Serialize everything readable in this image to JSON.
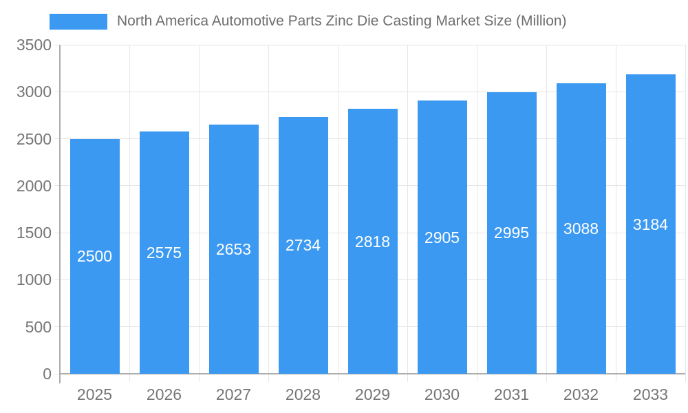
{
  "chart_data": {
    "type": "bar",
    "title": "North America Automotive Parts Zinc Die Casting Market Size (Million)",
    "legend_position": "top",
    "legend": [
      {
        "label": "North America Automotive Parts Zinc Die Casting Market Size (Million)",
        "color": "#3B99F1"
      }
    ],
    "categories": [
      "2025",
      "2026",
      "2027",
      "2028",
      "2029",
      "2030",
      "2031",
      "2032",
      "2033"
    ],
    "series": [
      {
        "name": "North America Automotive Parts Zinc Die Casting Market Size (Million)",
        "values": [
          2500,
          2575,
          2653,
          2734,
          2818,
          2905,
          2995,
          3088,
          3184
        ]
      }
    ],
    "value_labels": [
      "2500",
      "2575",
      "2653",
      "2734",
      "2818",
      "2905",
      "2995",
      "3088",
      "3184"
    ],
    "xlabel": "",
    "ylabel": "",
    "ylim": [
      0,
      3500
    ],
    "ytick_step": 500,
    "yticks": [
      "0",
      "500",
      "1000",
      "1500",
      "2000",
      "2500",
      "3000",
      "3500"
    ],
    "grid": true,
    "colors": {
      "bar": "#3B99F1",
      "value_label_text": "#ffffff",
      "axis_text": "#757575",
      "legend_text": "#6e6e6e",
      "gridline": "#e6e6e6",
      "axis_line": "#adadad",
      "background": "#ffffff"
    }
  }
}
